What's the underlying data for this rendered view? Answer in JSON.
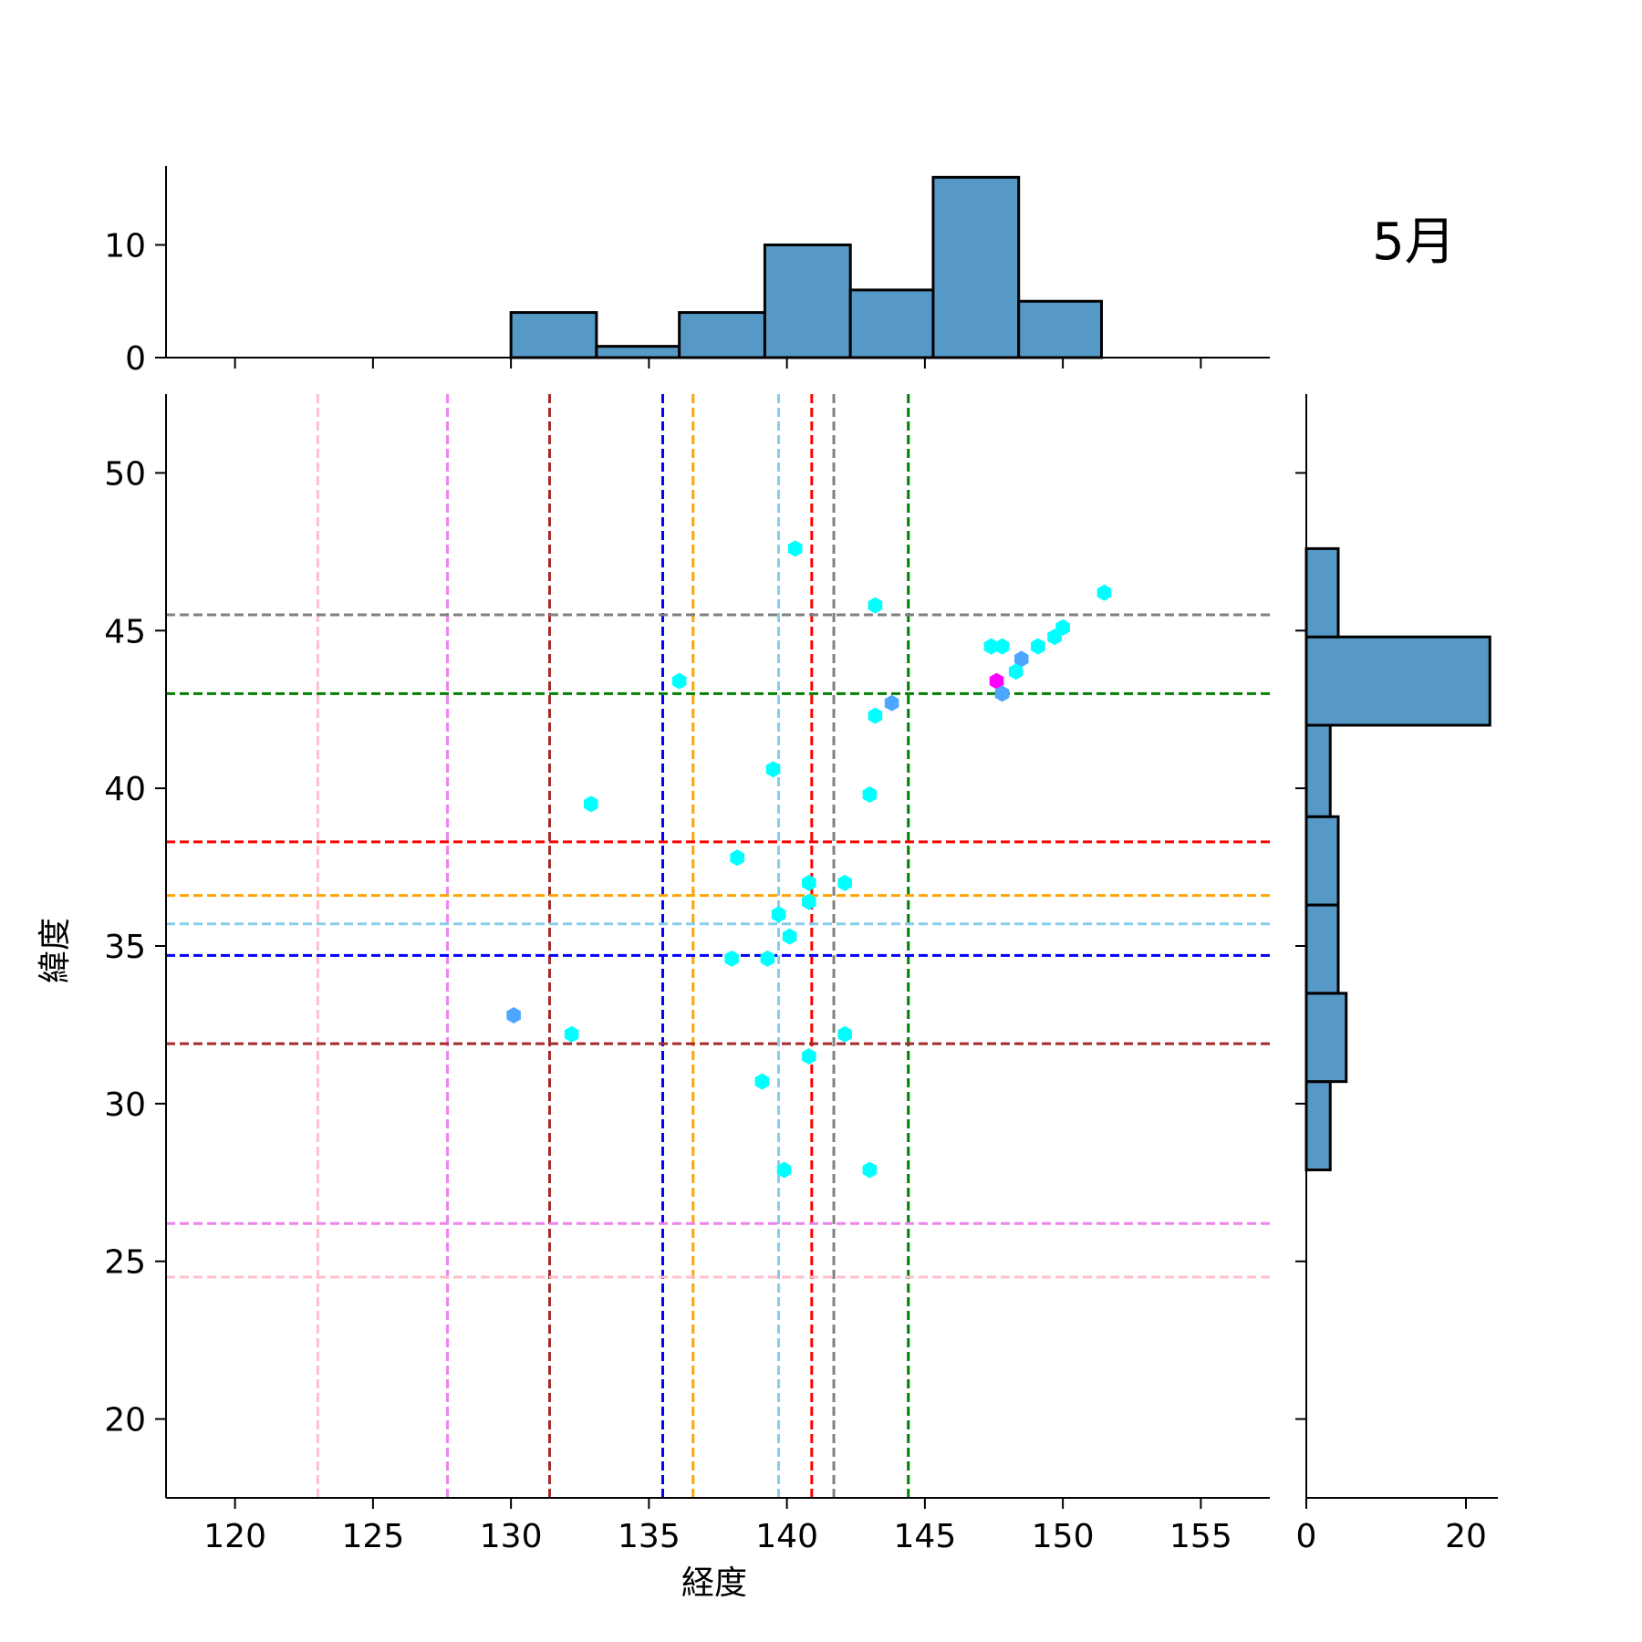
{
  "chart_data": {
    "type": "scatter",
    "title": "5月",
    "xlabel": "経度",
    "ylabel": "緯度",
    "xlim": [
      117.5,
      157.5
    ],
    "ylim": [
      17.5,
      52.5
    ],
    "xticks": [
      "120",
      "125",
      "130",
      "135",
      "140",
      "145",
      "150",
      "155"
    ],
    "yticks": [
      "20",
      "25",
      "30",
      "35",
      "40",
      "45",
      "50"
    ],
    "grid": false,
    "point_colors": {
      "cyan": "#00ffff",
      "blue": "#4da6ff",
      "magenta": "#ff00ff"
    },
    "points": [
      {
        "x": 140.3,
        "y": 47.6,
        "color": "cyan"
      },
      {
        "x": 151.5,
        "y": 46.2,
        "color": "cyan"
      },
      {
        "x": 143.2,
        "y": 45.8,
        "color": "cyan"
      },
      {
        "x": 150.0,
        "y": 45.1,
        "color": "cyan"
      },
      {
        "x": 149.7,
        "y": 44.8,
        "color": "cyan"
      },
      {
        "x": 149.1,
        "y": 44.5,
        "color": "cyan"
      },
      {
        "x": 147.4,
        "y": 44.5,
        "color": "cyan"
      },
      {
        "x": 147.8,
        "y": 44.5,
        "color": "cyan"
      },
      {
        "x": 148.5,
        "y": 44.1,
        "color": "blue"
      },
      {
        "x": 148.3,
        "y": 43.7,
        "color": "cyan"
      },
      {
        "x": 147.6,
        "y": 43.4,
        "color": "magenta"
      },
      {
        "x": 136.1,
        "y": 43.4,
        "color": "cyan"
      },
      {
        "x": 147.8,
        "y": 43.0,
        "color": "blue"
      },
      {
        "x": 143.8,
        "y": 42.7,
        "color": "blue"
      },
      {
        "x": 143.2,
        "y": 42.3,
        "color": "cyan"
      },
      {
        "x": 139.5,
        "y": 40.6,
        "color": "cyan"
      },
      {
        "x": 143.0,
        "y": 39.8,
        "color": "cyan"
      },
      {
        "x": 132.9,
        "y": 39.5,
        "color": "cyan"
      },
      {
        "x": 138.2,
        "y": 37.8,
        "color": "cyan"
      },
      {
        "x": 140.8,
        "y": 37.0,
        "color": "cyan"
      },
      {
        "x": 142.1,
        "y": 37.0,
        "color": "cyan"
      },
      {
        "x": 140.8,
        "y": 36.4,
        "color": "cyan"
      },
      {
        "x": 139.7,
        "y": 36.0,
        "color": "cyan"
      },
      {
        "x": 140.1,
        "y": 35.3,
        "color": "cyan"
      },
      {
        "x": 138.0,
        "y": 34.6,
        "color": "cyan"
      },
      {
        "x": 139.3,
        "y": 34.6,
        "color": "cyan"
      },
      {
        "x": 130.1,
        "y": 32.8,
        "color": "blue"
      },
      {
        "x": 132.2,
        "y": 32.2,
        "color": "cyan"
      },
      {
        "x": 142.1,
        "y": 32.2,
        "color": "cyan"
      },
      {
        "x": 140.8,
        "y": 31.5,
        "color": "cyan"
      },
      {
        "x": 139.1,
        "y": 30.7,
        "color": "cyan"
      },
      {
        "x": 139.9,
        "y": 27.9,
        "color": "cyan"
      },
      {
        "x": 143.0,
        "y": 27.9,
        "color": "cyan"
      }
    ],
    "reference_lines": {
      "vertical": [
        {
          "x": 123.0,
          "color": "#ffc0cb"
        },
        {
          "x": 127.7,
          "color": "#ee82ee"
        },
        {
          "x": 131.4,
          "color": "#a52a2a"
        },
        {
          "x": 135.5,
          "color": "#0000ff"
        },
        {
          "x": 136.6,
          "color": "#ffa500"
        },
        {
          "x": 139.7,
          "color": "#87ceeb"
        },
        {
          "x": 140.9,
          "color": "#ff0000"
        },
        {
          "x": 141.7,
          "color": "#808080"
        },
        {
          "x": 144.4,
          "color": "#008000"
        }
      ],
      "horizontal": [
        {
          "y": 45.5,
          "color": "#808080"
        },
        {
          "y": 43.0,
          "color": "#008000"
        },
        {
          "y": 38.3,
          "color": "#ff0000"
        },
        {
          "y": 36.6,
          "color": "#ffa500"
        },
        {
          "y": 35.7,
          "color": "#87ceeb"
        },
        {
          "y": 34.7,
          "color": "#0000ff"
        },
        {
          "y": 31.9,
          "color": "#a52a2a"
        },
        {
          "y": 26.2,
          "color": "#ee82ee"
        },
        {
          "y": 24.5,
          "color": "#ffc0cb"
        }
      ]
    },
    "marginal_x": {
      "type": "bar",
      "color": "#5799c6",
      "ylim": [
        0,
        17
      ],
      "yticks": [
        "0",
        "10"
      ],
      "bins": [
        {
          "x0": 130.0,
          "x1": 133.1,
          "count": 4
        },
        {
          "x0": 133.1,
          "x1": 136.1,
          "count": 1
        },
        {
          "x0": 136.1,
          "x1": 139.2,
          "count": 4
        },
        {
          "x0": 139.2,
          "x1": 142.3,
          "count": 10
        },
        {
          "x0": 142.3,
          "x1": 145.3,
          "count": 6
        },
        {
          "x0": 145.3,
          "x1": 148.4,
          "count": 16
        },
        {
          "x0": 148.4,
          "x1": 151.4,
          "count": 5
        }
      ]
    },
    "marginal_y": {
      "type": "bar",
      "color": "#5799c6",
      "xlim": [
        0,
        24
      ],
      "xticks": [
        "0",
        "20"
      ],
      "bins": [
        {
          "y0": 27.9,
          "y1": 30.7,
          "count": 3
        },
        {
          "y0": 30.7,
          "y1": 33.5,
          "count": 5
        },
        {
          "y0": 33.5,
          "y1": 36.3,
          "count": 4
        },
        {
          "y0": 36.3,
          "y1": 39.1,
          "count": 4
        },
        {
          "y0": 39.1,
          "y1": 42.0,
          "count": 3
        },
        {
          "y0": 42.0,
          "y1": 44.8,
          "count": 23
        },
        {
          "y0": 44.8,
          "y1": 47.6,
          "count": 4
        }
      ]
    }
  }
}
